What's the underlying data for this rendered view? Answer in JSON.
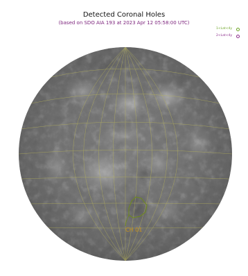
{
  "figure": {
    "title": "Detected Coronal Holes",
    "subtitle": "(based on SDO AIA 193 at 2023 Apr 12 05:58:00 UTC)"
  },
  "legend": {
    "items": [
      {
        "label": "1<Lat<4y",
        "color": "#6aa321"
      },
      {
        "label": "2<Lat<4y",
        "color": "#8a2a8a"
      }
    ]
  },
  "colors": {
    "title": "#111111",
    "subtitle": "#7a1f7a",
    "grid": "#b8b45a",
    "contour": "#6f8c19",
    "label": "#c8921a"
  },
  "annotations": [
    {
      "label": "CH 01",
      "color": "#c8921a"
    }
  ]
}
